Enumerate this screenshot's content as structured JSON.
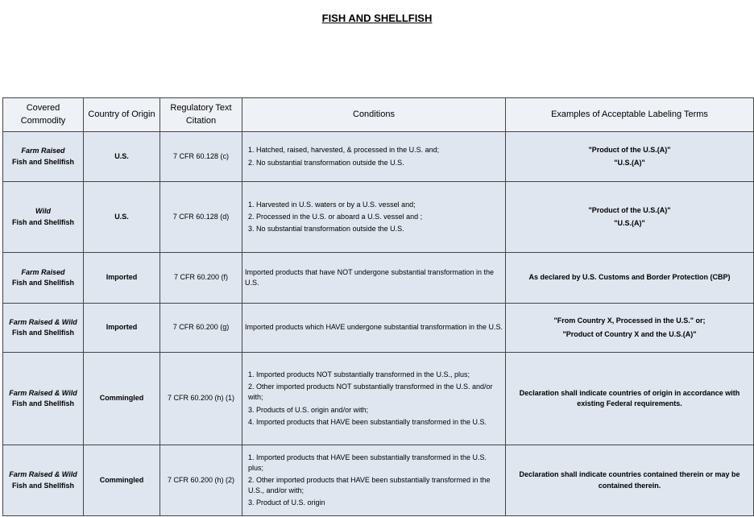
{
  "header": {
    "title": "FISH AND SHELLFISH"
  },
  "table": {
    "headers": [
      "Covered Commodity",
      "Country of Origin",
      "Regulatory Text Citation",
      "Conditions",
      "Examples of Acceptable Labeling Terms"
    ],
    "rows": [
      {
        "commodity": [
          "Farm Raised",
          "Fish and Shellfish"
        ],
        "origin": "U.S.",
        "citation": "7 CFR 60.128 (c)",
        "conditions": [
          "1.  Hatched, raised, harvested, & processed in the U.S. and;",
          "2.  No substantial transformation outside the U.S."
        ],
        "examples": [
          "\"Product of the U.S.(A)\"",
          "\"U.S.(A)\""
        ]
      },
      {
        "commodity": [
          "Wild",
          "Fish and Shellfish"
        ],
        "origin": "U.S.",
        "citation": "7 CFR 60.128 (d)",
        "conditions": [
          "1.  Harvested in U.S. waters or by a U.S. vessel and;",
          "2.  Processed in the U.S. or aboard a U.S. vessel and ;",
          "3.  No substantial transformation outside the U.S."
        ],
        "examples": [
          "\"Product of the U.S.(A)\"",
          "\"U.S.(A)\""
        ]
      },
      {
        "commodity": [
          "Farm Raised",
          "Fish and Shellfish"
        ],
        "origin": "Imported",
        "citation": "7 CFR 60.200 (f)",
        "conditions": [
          "Imported products that have NOT undergone substantial transformation in the U.S."
        ],
        "examples": [
          "As declared by U.S. Customs and Border Protection (CBP)"
        ]
      },
      {
        "commodity": [
          "Farm Raised & Wild",
          "Fish and Shellfish"
        ],
        "origin": "Imported",
        "citation": "7 CFR 60.200 (g)",
        "conditions": [
          "Imported products which HAVE undergone substantial transformation in the U.S."
        ],
        "examples": [
          "\"From Country X, Processed in the U.S.\" or;",
          "\"Product of Country X and the U.S.(A)\""
        ]
      },
      {
        "commodity": [
          "Farm Raised & Wild",
          "Fish and Shellfish"
        ],
        "origin": "Commingled",
        "citation": "7 CFR 60.200 (h) (1)",
        "conditions": [
          "1.  Imported products NOT substantially transformed in the U.S., plus;",
          "2.  Other imported products NOT substantially transformed in the U.S. and/or with;",
          "3.  Products of U.S. origin and/or with;",
          "4.  Imported products that HAVE been substantially transformed in the U.S."
        ],
        "examples": [
          "Declaration shall indicate countries of origin in accordance with existing Federal requirements."
        ]
      },
      {
        "commodity": [
          "Farm Raised & Wild",
          "Fish and Shellfish"
        ],
        "origin": "Commingled",
        "citation": "7 CFR 60.200 (h) (2)",
        "conditions": [
          "1.  Imported products that HAVE been substantially transformed in the U.S. plus;",
          "2.  Other imported products that HAVE been substantially transformed in the U.S., and/or with;",
          "3.  Product of U.S. origin"
        ],
        "examples": [
          "Declaration shall indicate countries contained therein or may be contained therein."
        ]
      }
    ]
  }
}
